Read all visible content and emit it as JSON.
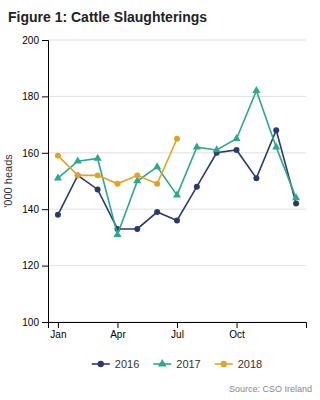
{
  "chart_data": {
    "type": "line",
    "title": "Figure 1: Cattle Slaughterings",
    "ylabel": "'000 heads",
    "annotations": [
      "Source: CSO Ireland"
    ],
    "categories": [
      "Jan",
      null,
      null,
      "Apr",
      null,
      null,
      "Jul",
      null,
      null,
      "Oct",
      null,
      null,
      null
    ],
    "series": [
      {
        "name": "2016",
        "color": "#2b3a6e",
        "marker": "circle",
        "values": [
          138,
          152,
          147,
          133,
          133,
          139,
          136,
          148,
          160,
          161,
          151,
          168,
          142
        ]
      },
      {
        "name": "2017",
        "color": "#2aaa8a",
        "marker": "triangle",
        "values": [
          151,
          157,
          158,
          131,
          150,
          155,
          145,
          162,
          161,
          165,
          182,
          162,
          144
        ]
      },
      {
        "name": "2018",
        "color": "#e8a020",
        "marker": "circle",
        "values": [
          159,
          152,
          152,
          149,
          152,
          149,
          165,
          null,
          null,
          null,
          null,
          null,
          null
        ]
      }
    ],
    "ylim": [
      100,
      200
    ],
    "yticks": [
      100,
      120,
      140,
      160,
      180,
      200
    ],
    "grid": true,
    "legend": "bottom"
  }
}
